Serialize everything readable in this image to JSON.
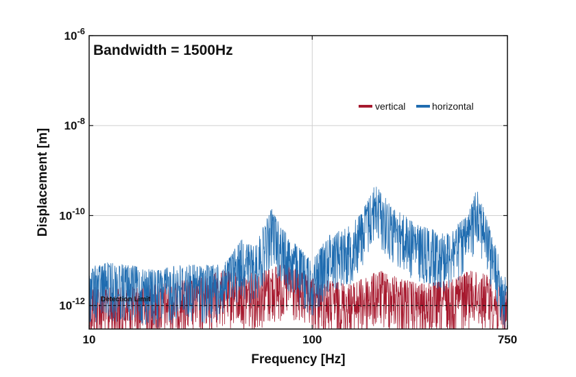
{
  "chart_data": {
    "type": "line",
    "title": "",
    "xlabel": "Frequency [Hz]",
    "ylabel": "Displacement [m]",
    "xscale": "log",
    "yscale": "log",
    "xlim": [
      10,
      750
    ],
    "ylim": [
      3e-13,
      1e-06
    ],
    "xticks": [
      {
        "value": 10,
        "label": "10"
      },
      {
        "value": 100,
        "label": "100"
      },
      {
        "value": 750,
        "label": "750"
      }
    ],
    "yticks": [
      {
        "value": 1e-12,
        "base": "10",
        "exp": "-12"
      },
      {
        "value": 1e-10,
        "base": "10",
        "exp": "-10"
      },
      {
        "value": 1e-08,
        "base": "10",
        "exp": "-8"
      },
      {
        "value": 1e-06,
        "base": "10",
        "exp": "-6"
      }
    ],
    "grid": true,
    "annotation": "Bandwidth = 1500Hz",
    "detection_limit": {
      "label": "Detection Limit",
      "value": 1e-12
    },
    "legend_position": "top-right",
    "series": [
      {
        "name": "vertical",
        "color": "#a6192e",
        "peaks": [
          {
            "x": 10,
            "y": 3e-12
          },
          {
            "x": 12,
            "y": 2.5e-12
          },
          {
            "x": 15,
            "y": 2.5e-12
          },
          {
            "x": 20,
            "y": 3e-12
          },
          {
            "x": 30,
            "y": 4e-12
          },
          {
            "x": 40,
            "y": 6e-12
          },
          {
            "x": 50,
            "y": 5e-12
          },
          {
            "x": 60,
            "y": 6e-12
          },
          {
            "x": 70,
            "y": 8e-12
          },
          {
            "x": 80,
            "y": 8e-12
          },
          {
            "x": 100,
            "y": 4e-12
          },
          {
            "x": 150,
            "y": 3e-12
          },
          {
            "x": 200,
            "y": 6e-12
          },
          {
            "x": 300,
            "y": 3e-12
          },
          {
            "x": 400,
            "y": 3.5e-12
          },
          {
            "x": 500,
            "y": 6e-12
          },
          {
            "x": 600,
            "y": 5e-12
          },
          {
            "x": 750,
            "y": 2e-12
          }
        ]
      },
      {
        "name": "horizontal",
        "color": "#1f6cb0",
        "peaks": [
          {
            "x": 10,
            "y": 7e-12
          },
          {
            "x": 12,
            "y": 9e-12
          },
          {
            "x": 15,
            "y": 8e-12
          },
          {
            "x": 20,
            "y": 6e-12
          },
          {
            "x": 25,
            "y": 8e-12
          },
          {
            "x": 30,
            "y": 8e-12
          },
          {
            "x": 40,
            "y": 8e-12
          },
          {
            "x": 48,
            "y": 3e-11
          },
          {
            "x": 55,
            "y": 2e-11
          },
          {
            "x": 66,
            "y": 1.5e-10
          },
          {
            "x": 72,
            "y": 6e-11
          },
          {
            "x": 80,
            "y": 3e-11
          },
          {
            "x": 100,
            "y": 1e-11
          },
          {
            "x": 120,
            "y": 4e-11
          },
          {
            "x": 150,
            "y": 6e-11
          },
          {
            "x": 170,
            "y": 1.5e-10
          },
          {
            "x": 192,
            "y": 5e-10
          },
          {
            "x": 230,
            "y": 1.5e-10
          },
          {
            "x": 300,
            "y": 6e-11
          },
          {
            "x": 400,
            "y": 4e-11
          },
          {
            "x": 500,
            "y": 1e-10
          },
          {
            "x": 550,
            "y": 5e-10
          },
          {
            "x": 600,
            "y": 1e-10
          },
          {
            "x": 750,
            "y": 3e-12
          }
        ]
      }
    ]
  }
}
